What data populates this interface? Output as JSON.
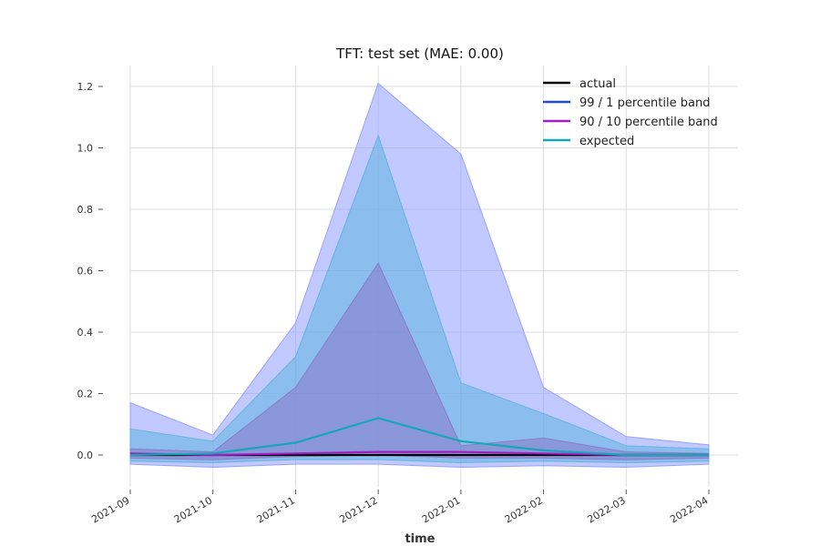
{
  "chart_data": {
    "type": "line",
    "title": "TFT: test set (MAE: 0.00)",
    "xlabel": "time",
    "ylabel": "",
    "x": [
      "2021-09",
      "2021-10",
      "2021-11",
      "2021-12",
      "2022-01",
      "2022-02",
      "2022-03",
      "2022-04"
    ],
    "yticks": [
      0.0,
      0.2,
      0.4,
      0.6,
      0.8,
      1.0,
      1.2
    ],
    "ytick_labels": [
      "0.0",
      "0.2",
      "0.4",
      "0.6",
      "0.8",
      "1.0",
      "1.2"
    ],
    "ylim": [
      -0.1,
      1.27
    ],
    "grid": true,
    "legend_position": "top-right",
    "bands": [
      {
        "name": "99 / 1 percentile band",
        "upper": [
          0.17,
          0.065,
          0.43,
          1.21,
          0.98,
          0.22,
          0.06,
          0.033
        ],
        "lower": [
          -0.03,
          -0.04,
          -0.03,
          -0.03,
          -0.04,
          -0.035,
          -0.04,
          -0.03
        ],
        "color": "#8e9cff"
      },
      {
        "name": "",
        "upper": [
          0.085,
          0.045,
          0.32,
          1.04,
          0.235,
          0.135,
          0.03,
          0.02
        ],
        "lower": [
          -0.02,
          -0.025,
          -0.015,
          -0.015,
          -0.025,
          -0.02,
          -0.025,
          -0.02
        ],
        "color": "#5fb3e0"
      },
      {
        "name": "90 / 10 percentile band",
        "upper": [
          0.02,
          0.01,
          0.22,
          0.625,
          0.03,
          0.055,
          0.01,
          0.005
        ],
        "lower": [
          -0.01,
          -0.015,
          -0.005,
          0.0,
          -0.01,
          -0.01,
          -0.015,
          -0.01
        ],
        "color": "#8a78c8"
      }
    ],
    "series": [
      {
        "name": "actual",
        "values": [
          0.0,
          0.0,
          0.0,
          0.0,
          0.0,
          0.0,
          0.0,
          0.0
        ],
        "color": "#000000"
      },
      {
        "name": "99 / 1 percentile band",
        "values": null,
        "color": "#1f4bd6"
      },
      {
        "name": "90 / 10 percentile band",
        "values": [
          0.005,
          0.0,
          0.005,
          0.01,
          0.01,
          0.005,
          0.0,
          0.0
        ],
        "color": "#a01fc0"
      },
      {
        "name": "expected",
        "values": [
          0.0,
          0.005,
          0.04,
          0.12,
          0.045,
          0.015,
          0.0,
          0.0
        ],
        "color": "#17a6b8"
      }
    ]
  }
}
